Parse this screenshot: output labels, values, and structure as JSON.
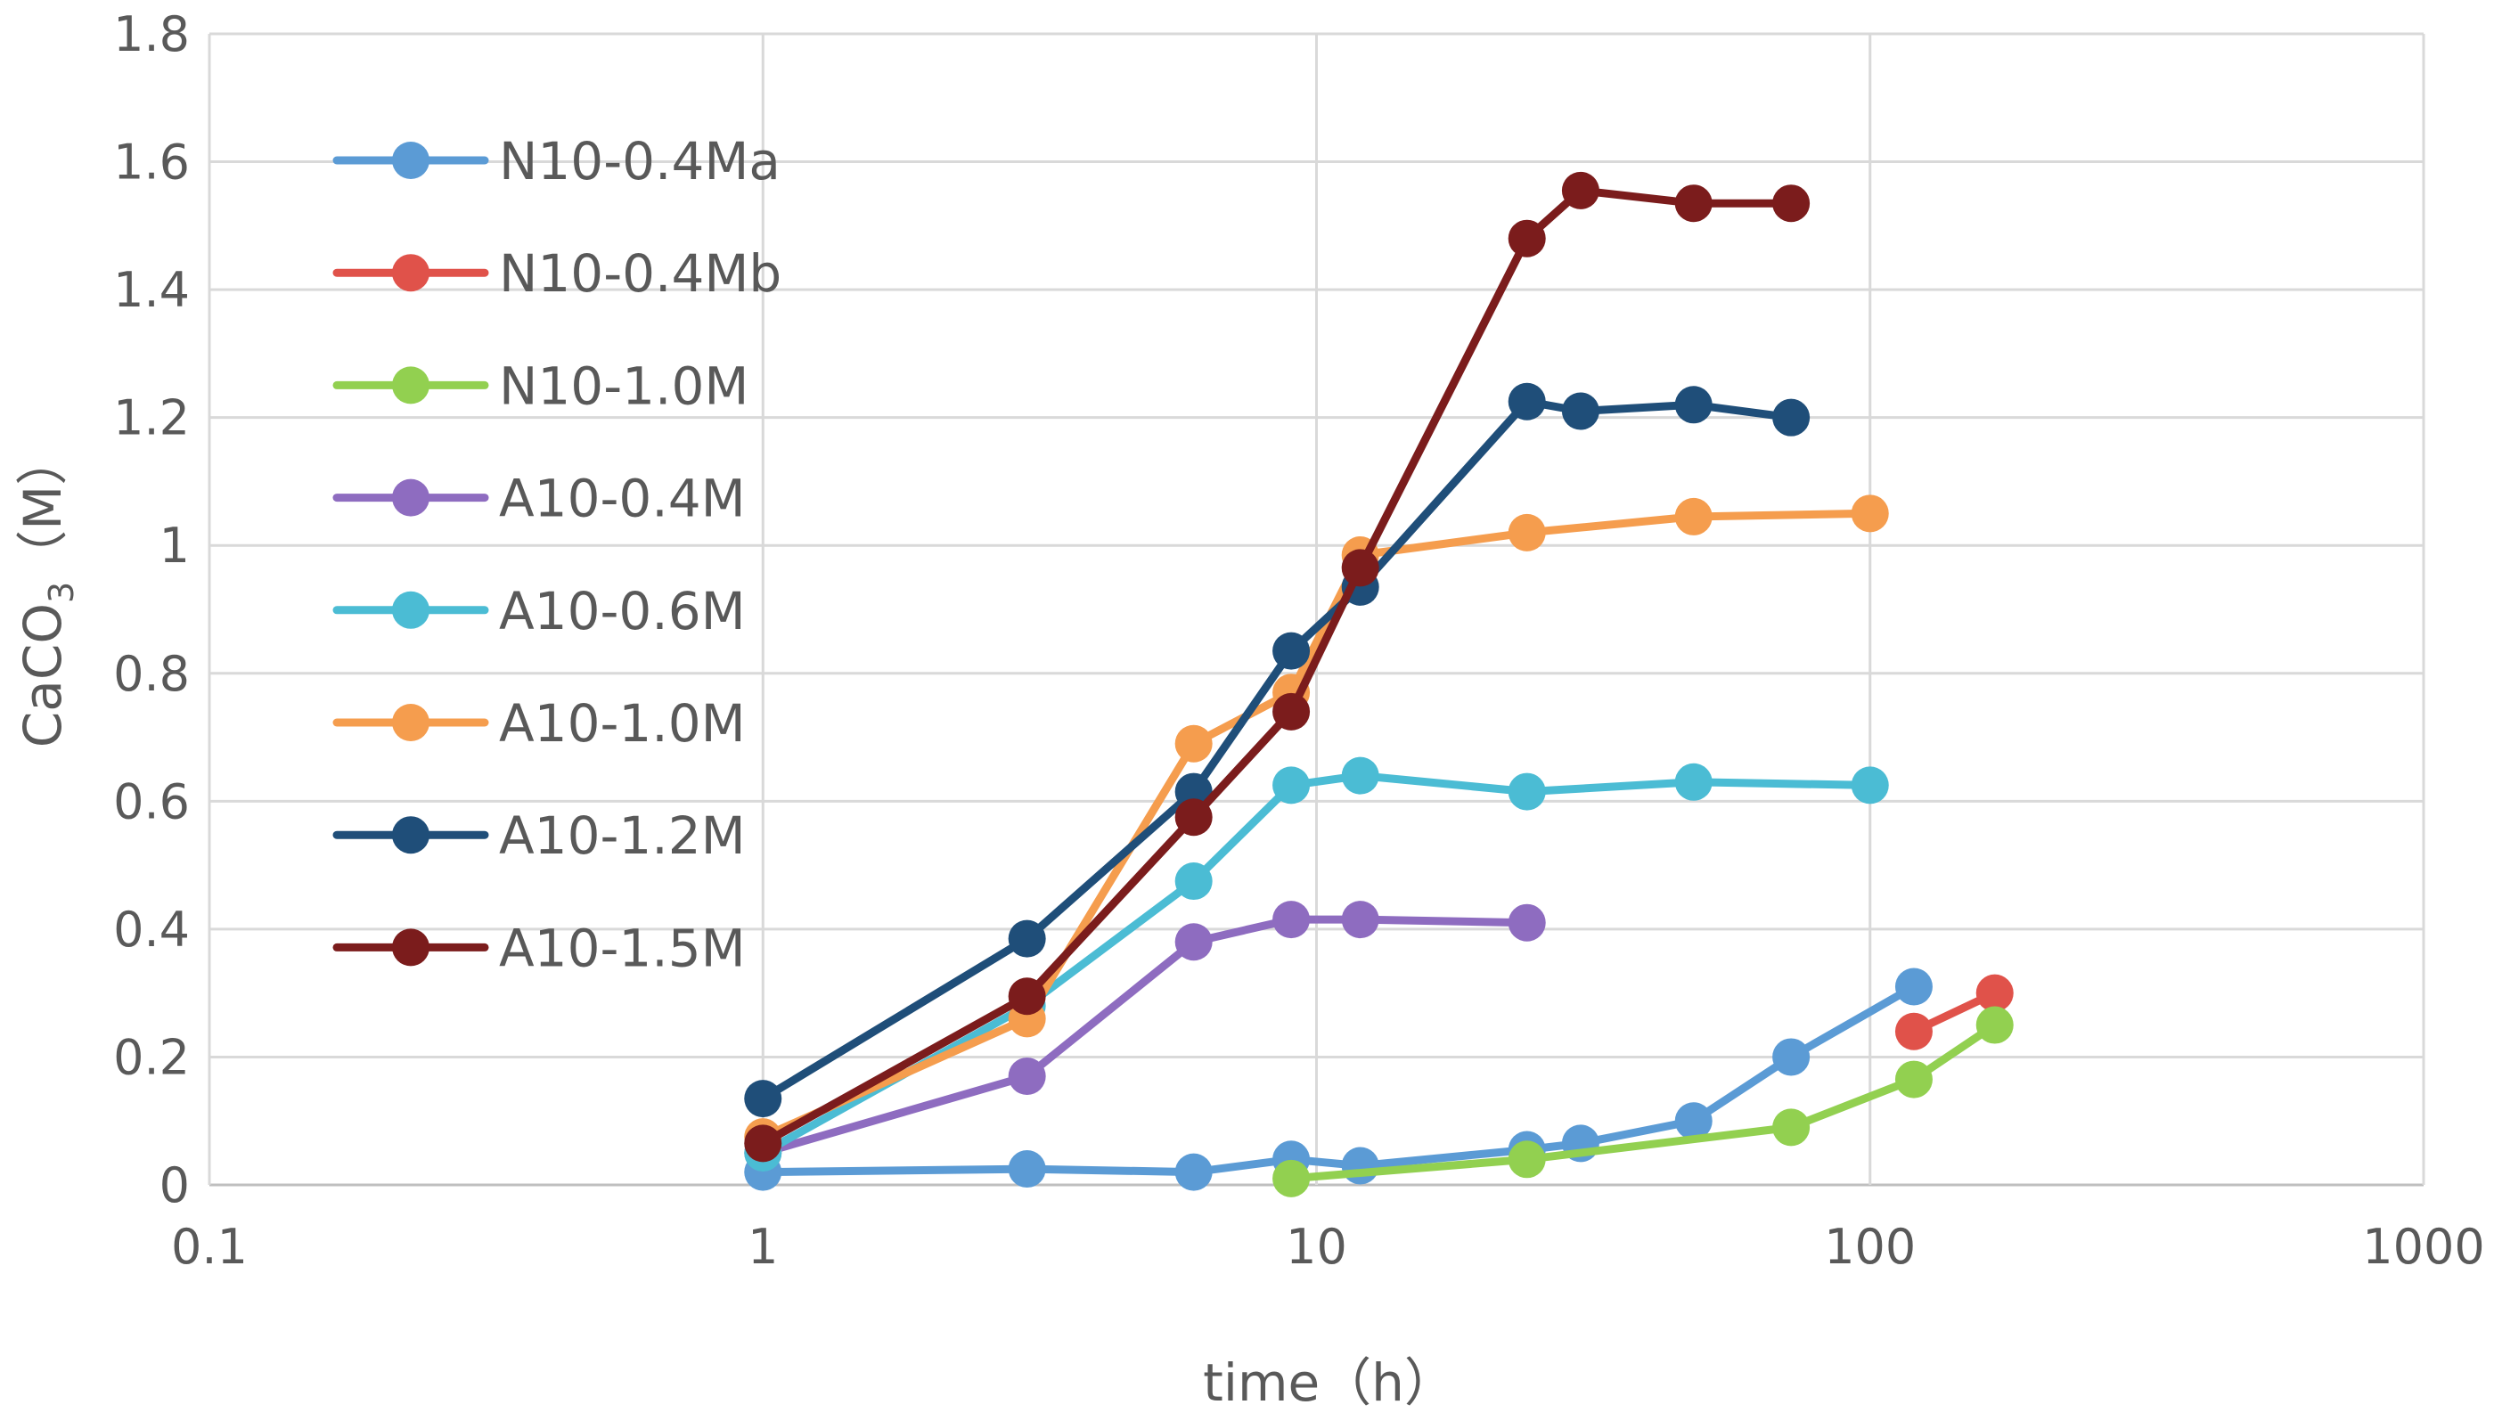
{
  "chart_data": {
    "type": "line",
    "title": "",
    "xlabel": "time（h）",
    "ylabel_main": "CaCO",
    "ylabel_sub": "3",
    "ylabel_unit": "（M）",
    "xscale": "log",
    "xlim": [
      0.1,
      1000
    ],
    "ylim": [
      0,
      1.8
    ],
    "x_ticks": [
      0.1,
      1,
      10,
      100,
      1000
    ],
    "x_tick_labels": [
      "0.1",
      "1",
      "10",
      "100",
      "1000"
    ],
    "y_ticks": [
      0,
      0.2,
      0.4,
      0.6,
      0.8,
      1,
      1.2,
      1.4,
      1.6,
      1.8
    ],
    "y_tick_labels": [
      "0",
      "0.2",
      "0.4",
      "0.6",
      "0.8",
      "1",
      "1.2",
      "1.4",
      "1.6",
      "1.8"
    ],
    "grid": true,
    "legend_position": "top-left",
    "series": [
      {
        "name": "N10-0.4Ma",
        "color": "#5b9bd5",
        "x": [
          1,
          3,
          6,
          9,
          12,
          24,
          30,
          48,
          72,
          120
        ],
        "y": [
          0.02,
          0.025,
          0.02,
          0.04,
          0.03,
          0.055,
          0.065,
          0.1,
          0.2,
          0.31
        ]
      },
      {
        "name": "N10-0.4Mb",
        "color": "#e0524a",
        "x": [
          120,
          168
        ],
        "y": [
          0.24,
          0.3
        ]
      },
      {
        "name": "N10-1.0M",
        "color": "#92d050",
        "x": [
          9,
          24,
          72,
          120,
          168
        ],
        "y": [
          0.01,
          0.04,
          0.09,
          0.165,
          0.25
        ]
      },
      {
        "name": "A10-0.4M",
        "color": "#8e6cc0",
        "x": [
          1,
          3,
          6,
          9,
          12,
          24
        ],
        "y": [
          0.05,
          0.17,
          0.38,
          0.415,
          0.415,
          0.41
        ]
      },
      {
        "name": "A10-0.6M",
        "color": "#4bbcd4",
        "x": [
          1,
          3,
          6,
          9,
          12,
          24,
          48,
          100
        ],
        "y": [
          0.05,
          0.28,
          0.475,
          0.625,
          0.64,
          0.615,
          0.63,
          0.625
        ]
      },
      {
        "name": "A10-1.0M",
        "color": "#f59d4e",
        "x": [
          1,
          3,
          6,
          9,
          12,
          24,
          48,
          100
        ],
        "y": [
          0.075,
          0.26,
          0.69,
          0.77,
          0.985,
          1.02,
          1.045,
          1.05
        ]
      },
      {
        "name": "A10-1.2M",
        "color": "#1f4e79",
        "x": [
          1,
          3,
          6,
          9,
          12,
          24,
          30,
          48,
          72
        ],
        "y": [
          0.135,
          0.385,
          0.615,
          0.835,
          0.935,
          1.225,
          1.21,
          1.22,
          1.2
        ]
      },
      {
        "name": "A10-1.5M",
        "color": "#7b1c1c",
        "x": [
          1,
          3,
          6,
          9,
          12,
          24,
          30,
          48,
          72
        ],
        "y": [
          0.065,
          0.295,
          0.575,
          0.74,
          0.965,
          1.48,
          1.555,
          1.535,
          1.535
        ]
      }
    ]
  }
}
